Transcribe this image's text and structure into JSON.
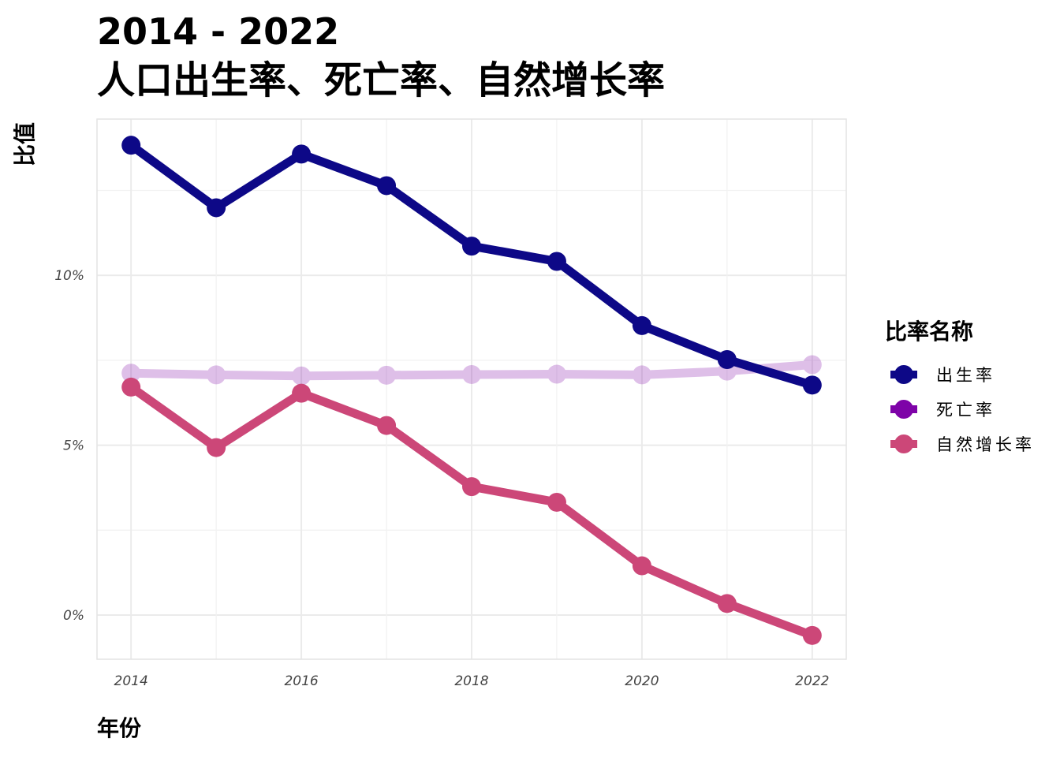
{
  "title": {
    "line1": "2014 - 2022",
    "line2": "人口出生率、死亡率、自然增长率"
  },
  "axes": {
    "x_title": "年份",
    "y_title": "比值"
  },
  "legend": {
    "title": "比率名称",
    "position": "right"
  },
  "colors": {
    "birth_rate": "#0d0887",
    "death_rate": "#7e03a8",
    "natural_growth": "#cc4778"
  },
  "chart_data": {
    "type": "line",
    "x": [
      2014,
      2015,
      2016,
      2017,
      2018,
      2019,
      2020,
      2021,
      2022
    ],
    "xlim": [
      2013.6,
      2022.4
    ],
    "ylim": [
      -1.3,
      14.6
    ],
    "x_ticks": [
      2014,
      2016,
      2018,
      2020,
      2022
    ],
    "x_tick_labels": [
      "2014",
      "2016",
      "2018",
      "2020",
      "2022"
    ],
    "y_ticks": [
      0,
      5,
      10
    ],
    "y_tick_labels": [
      "0%",
      "5%",
      "10%"
    ],
    "grid": true,
    "series": [
      {
        "name": "出生率",
        "color": "#0d0887",
        "values": [
          13.83,
          11.99,
          13.57,
          12.64,
          10.86,
          10.41,
          8.52,
          7.52,
          6.77
        ]
      },
      {
        "name": "死亡率",
        "color": "#7e03a8",
        "translucent": true,
        "values": [
          7.12,
          7.07,
          7.04,
          7.06,
          7.08,
          7.09,
          7.07,
          7.18,
          7.37
        ]
      },
      {
        "name": "自然增长率",
        "color": "#cc4778",
        "values": [
          6.71,
          4.93,
          6.53,
          5.58,
          3.78,
          3.32,
          1.45,
          0.34,
          -0.6
        ]
      }
    ]
  }
}
